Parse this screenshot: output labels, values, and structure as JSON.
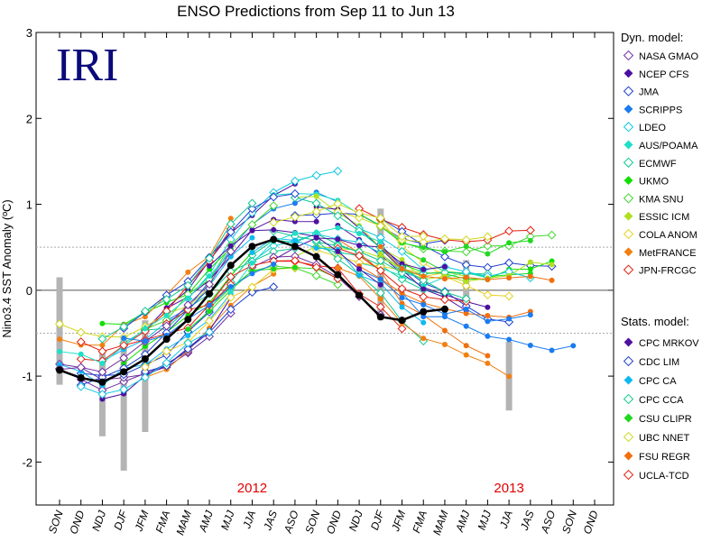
{
  "chart_data": {
    "type": "line",
    "title": "ENSO Predictions from Sep 11 to Jun 13",
    "ylabel": "Nino3.4 SST Anomaly (ºC)",
    "xlabel": "",
    "logo": "IRI",
    "ylim": [
      -2.5,
      3
    ],
    "yticks": [
      -2,
      -1,
      0,
      1,
      2,
      3
    ],
    "threshold_lines": [
      0.5,
      -0.5
    ],
    "categories": [
      "SON",
      "OND",
      "NDJ",
      "DJF",
      "JFM",
      "FMA",
      "MAM",
      "AMJ",
      "MJJ",
      "JJA",
      "JAS",
      "ASO",
      "SON",
      "OND",
      "NDJ",
      "DJF",
      "JFM",
      "FMA",
      "MAM",
      "AMJ",
      "MJJ",
      "JJA",
      "JAS",
      "ASO",
      "SON",
      "OND"
    ],
    "year_labels": [
      {
        "text": "2012",
        "x": 9.0
      },
      {
        "text": "2013",
        "x": 21.0
      }
    ],
    "observed": {
      "values": [
        -0.93,
        -1.02,
        -1.07,
        -0.95,
        -0.8,
        -0.57,
        -0.34,
        -0.04,
        0.29,
        0.51,
        0.59,
        0.51,
        0.39,
        0.18,
        -0.06,
        -0.31,
        -0.35,
        -0.25,
        -0.22
      ],
      "color": "#000000"
    },
    "spread_bars": [
      {
        "x": 0,
        "low": -1.1,
        "high": 0.15
      },
      {
        "x": 2,
        "low": -1.7,
        "high": -0.7
      },
      {
        "x": 3,
        "low": -2.1,
        "high": -0.55
      },
      {
        "x": 4,
        "low": -1.65,
        "high": -0.35
      },
      {
        "x": 15,
        "low": -0.35,
        "high": 0.95
      },
      {
        "x": 19,
        "low": -0.15,
        "high": 0.35
      },
      {
        "x": 21,
        "low": -1.4,
        "high": -0.6
      }
    ],
    "dynamical_header": "Dyn. model:",
    "statistical_header": "Stats. model:",
    "series": [
      {
        "name": "NASA GMAO",
        "group": "dyn",
        "color": "#7030a0",
        "filled": false
      },
      {
        "name": "NCEP CFS",
        "group": "dyn",
        "color": "#4b0fa0",
        "filled": true
      },
      {
        "name": "JMA",
        "group": "dyn",
        "color": "#1f3fd0",
        "filled": false
      },
      {
        "name": "SCRIPPS",
        "group": "dyn",
        "color": "#1a7cf0",
        "filled": true
      },
      {
        "name": "LDEO",
        "group": "dyn",
        "color": "#10c8e0",
        "filled": false
      },
      {
        "name": "AUS/POAMA",
        "group": "dyn",
        "color": "#1ee0c8",
        "filled": true
      },
      {
        "name": "ECMWF",
        "group": "dyn",
        "color": "#10c890",
        "filled": false
      },
      {
        "name": "UKMO",
        "group": "dyn",
        "color": "#10e000",
        "filled": true
      },
      {
        "name": "KMA SNU",
        "group": "dyn",
        "color": "#40d830",
        "filled": false
      },
      {
        "name": "ESSIC ICM",
        "group": "dyn",
        "color": "#b0e020",
        "filled": true
      },
      {
        "name": "COLA ANOM",
        "group": "dyn",
        "color": "#e8d020",
        "filled": false
      },
      {
        "name": "MetFRANCE",
        "group": "dyn",
        "color": "#f08010",
        "filled": true
      },
      {
        "name": "JPN-FRCGC",
        "group": "dyn",
        "color": "#e02010",
        "filled": false
      },
      {
        "name": "CPC MRKOV",
        "group": "stat",
        "color": "#5010a0",
        "filled": true
      },
      {
        "name": "CDC LIM",
        "group": "stat",
        "color": "#1f3fd0",
        "filled": false
      },
      {
        "name": "CPC CA",
        "group": "stat",
        "color": "#10b8f0",
        "filled": true
      },
      {
        "name": "CPC CCA",
        "group": "stat",
        "color": "#10c890",
        "filled": false
      },
      {
        "name": "CSU CLIPR",
        "group": "stat",
        "color": "#20d820",
        "filled": true
      },
      {
        "name": "UBC NNET",
        "group": "stat",
        "color": "#d0d820",
        "filled": false
      },
      {
        "name": "FSU REGR",
        "group": "stat",
        "color": "#f07010",
        "filled": true
      },
      {
        "name": "UCLA-TCD",
        "group": "stat",
        "color": "#e02010",
        "filled": false
      }
    ]
  }
}
